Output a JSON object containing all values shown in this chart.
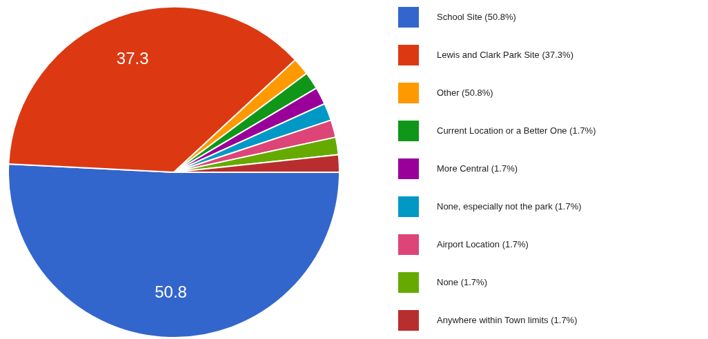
{
  "chart_data": {
    "type": "pie",
    "categories": [
      "School Site (50.8%)",
      "Lewis and Clark Park Site (37.3%)",
      "Other (50.8%)",
      "Current Location or a Better One (1.7%)",
      "More Central (1.7%)",
      "None, especially  not the park (1.7%)",
      "Airport Location (1.7%)",
      "None (1.7%)",
      "Anywhere within Town limits (1.7%)"
    ],
    "values": [
      50.8,
      37.3,
      1.7,
      1.7,
      1.7,
      1.7,
      1.7,
      1.7,
      1.7
    ],
    "colors": [
      "#3366cc",
      "#dc3912",
      "#ff9900",
      "#109618",
      "#990099",
      "#0099c6",
      "#dd4477",
      "#66aa00",
      "#b82e2e"
    ],
    "value_labels": [
      "50.8",
      "37.3",
      null,
      null,
      null,
      null,
      null,
      null,
      null
    ],
    "legend": "right"
  }
}
